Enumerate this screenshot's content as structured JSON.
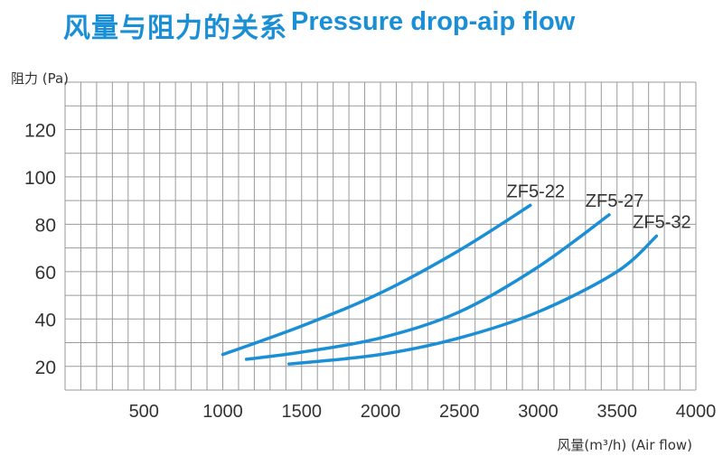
{
  "title": "风量与阻力的关系",
  "title_en": "Pressure drop-aip flow",
  "colors": {
    "title": "#1a8fd6",
    "series": "#1a8fd6",
    "grid": "#9a9a9a",
    "text": "#333333"
  },
  "chart_data": {
    "type": "line",
    "ylabel": "阻力 (Pa)",
    "xlabel": "风量(m³/h)  (Air flow)",
    "xlim": [
      0,
      4000
    ],
    "ylim": [
      10,
      140
    ],
    "xticks": [
      500,
      1000,
      1500,
      2000,
      2500,
      3000,
      3500,
      4000
    ],
    "yticks": [
      20,
      40,
      60,
      80,
      100,
      120
    ],
    "grid": true,
    "series": [
      {
        "name": "ZF5-22",
        "x": [
          1000,
          1500,
          2000,
          2500,
          2950
        ],
        "y": [
          25,
          37,
          51,
          69,
          88
        ]
      },
      {
        "name": "ZF5-27",
        "x": [
          1150,
          1500,
          2000,
          2500,
          3000,
          3450
        ],
        "y": [
          23,
          26,
          32,
          43,
          62,
          84
        ]
      },
      {
        "name": "ZF5-32",
        "x": [
          1420,
          2000,
          2500,
          3000,
          3500,
          3750
        ],
        "y": [
          21,
          25,
          32,
          43,
          60,
          75
        ]
      }
    ]
  }
}
